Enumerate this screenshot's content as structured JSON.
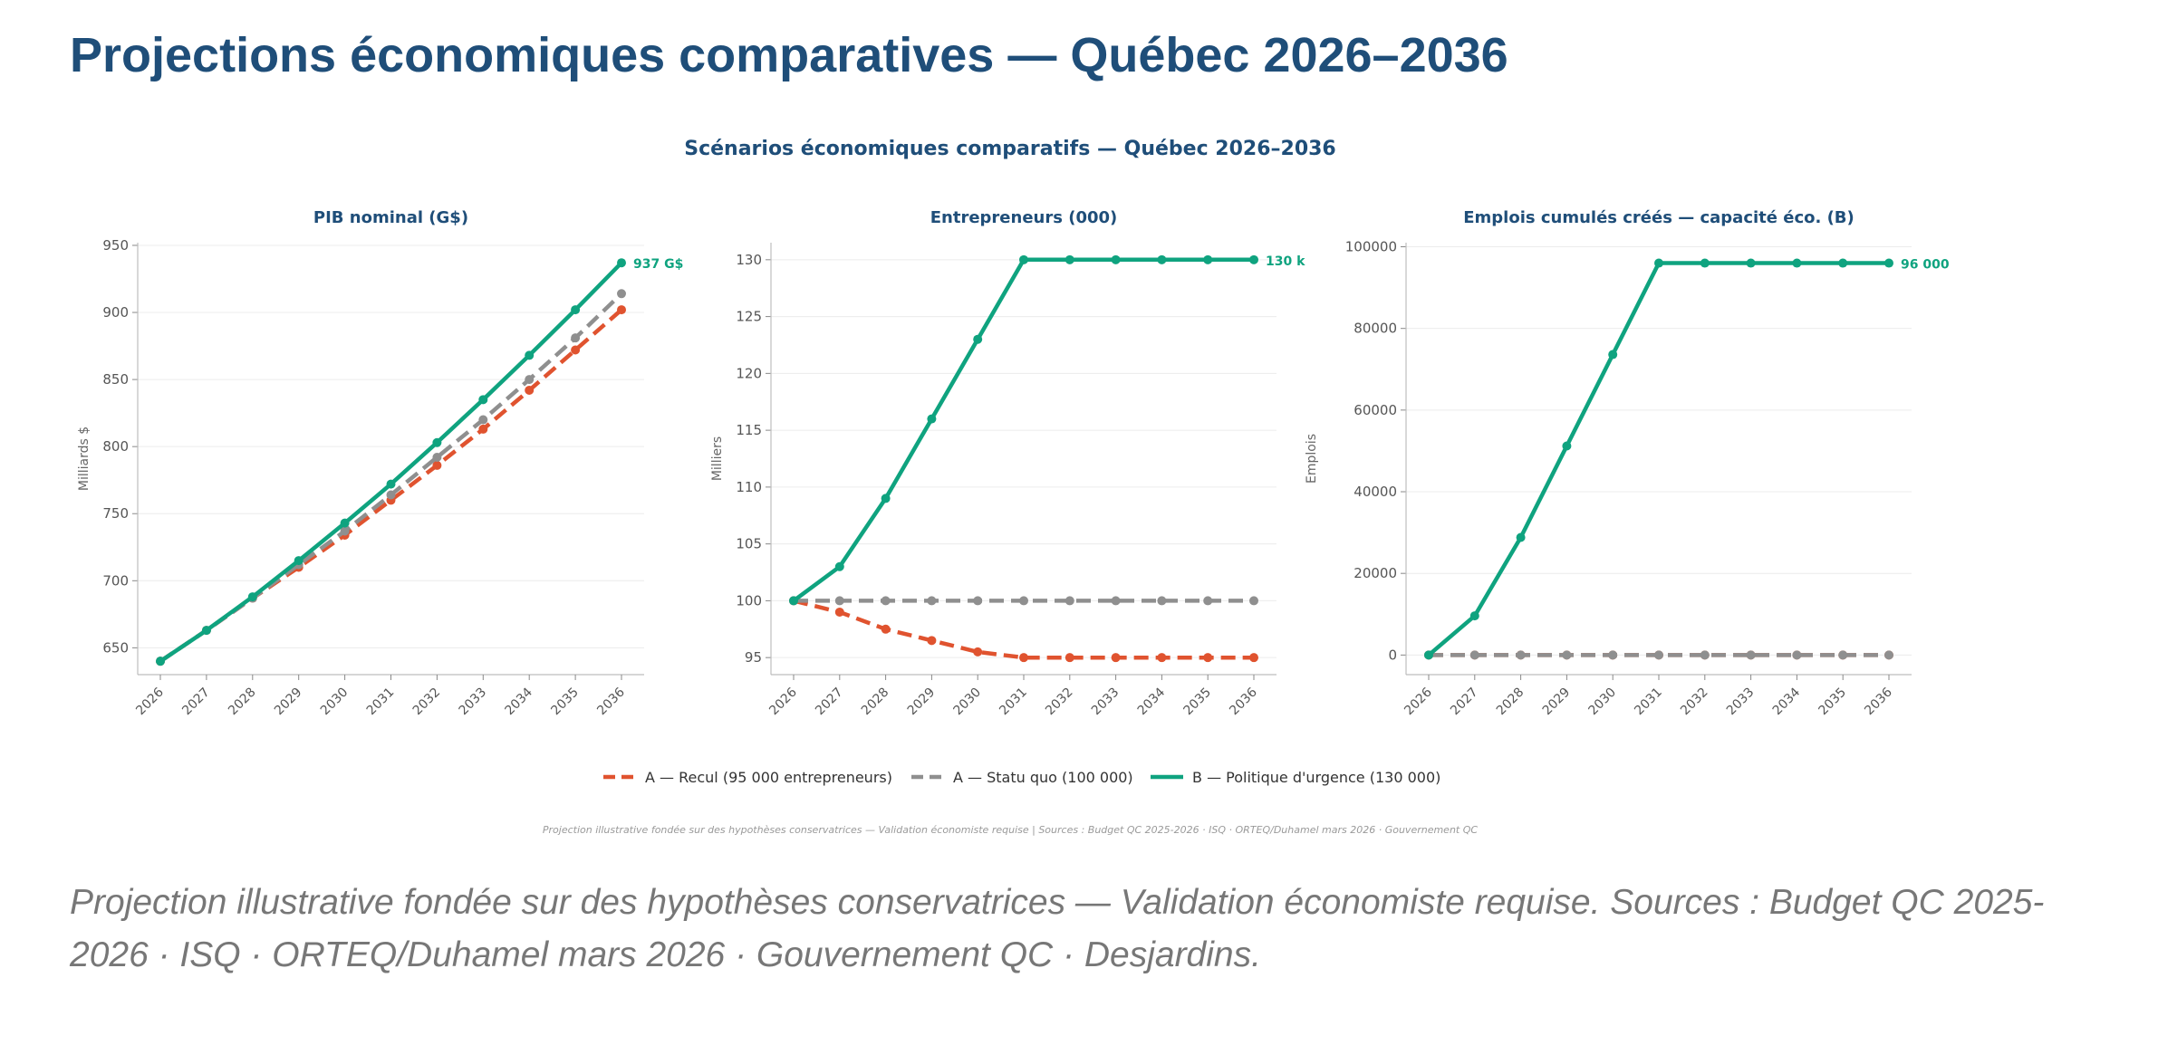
{
  "page": {
    "title": "Projections économiques comparatives — Québec 2026–2036",
    "caption": "Projection illustrative fondée sur des hypothèses conservatrices — Validation économiste requise. Sources : Budget QC 2025-2026 · ISQ · ORTEQ/Duhamel mars 2026 · Gouvernement QC · Desjardins."
  },
  "figure": {
    "suptitle": "Scénarios économiques comparatifs — Québec 2026–2036",
    "footnote": "Projection illustrative fondée sur des hypothèses conservatrices — Validation économiste requise  |  Sources : Budget QC 2025-2026 · ISQ · ORTEQ/Duhamel mars 2026 · Gouvernement QC",
    "legend_placement": "bottom-center",
    "legend": [
      {
        "label": "A — Recul (95 000 entrepreneurs)",
        "color": "#e0532f",
        "style": "dashed"
      },
      {
        "label": "A — Statu quo (100 000)",
        "color": "#8f8f8f",
        "style": "dashed"
      },
      {
        "label": "B — Politique d'urgence (130 000)",
        "color": "#0fa37f",
        "style": "solid"
      }
    ]
  },
  "chart_data": [
    {
      "type": "line",
      "title": "PIB nominal (G$)",
      "xlabel": "",
      "ylabel": "Milliards $",
      "x": [
        2026,
        2027,
        2028,
        2029,
        2030,
        2031,
        2032,
        2033,
        2034,
        2035,
        2036
      ],
      "ylim": [
        630,
        952
      ],
      "yticks": [
        650,
        700,
        750,
        800,
        850,
        900,
        950
      ],
      "grid": "horizontal",
      "end_label": "937 G$",
      "series": [
        {
          "name": "A — Recul (95 000 entrepreneurs)",
          "color": "#e0532f",
          "style": "dashed",
          "values": [
            640,
            663,
            687,
            710,
            734,
            760,
            786,
            813,
            842,
            872,
            902
          ]
        },
        {
          "name": "A — Statu quo (100 000)",
          "color": "#8f8f8f",
          "style": "dashed",
          "values": [
            640,
            663,
            687,
            712,
            737,
            764,
            792,
            820,
            850,
            881,
            914
          ]
        },
        {
          "name": "B — Politique d'urgence (130 000)",
          "color": "#0fa37f",
          "style": "solid",
          "values": [
            640,
            663,
            688,
            715,
            743,
            772,
            803,
            835,
            868,
            902,
            937
          ]
        }
      ]
    },
    {
      "type": "line",
      "title": "Entrepreneurs (000)",
      "xlabel": "",
      "ylabel": "Milliers",
      "x": [
        2026,
        2027,
        2028,
        2029,
        2030,
        2031,
        2032,
        2033,
        2034,
        2035,
        2036
      ],
      "ylim": [
        93.5,
        131.5
      ],
      "yticks": [
        95,
        100,
        105,
        110,
        115,
        120,
        125,
        130
      ],
      "grid": "horizontal",
      "end_label": "130 k",
      "series": [
        {
          "name": "A — Recul (95 000 entrepreneurs)",
          "color": "#e0532f",
          "style": "dashed",
          "values": [
            100,
            99,
            97.5,
            96.5,
            95.5,
            95,
            95,
            95,
            95,
            95,
            95
          ]
        },
        {
          "name": "A — Statu quo (100 000)",
          "color": "#8f8f8f",
          "style": "dashed",
          "values": [
            100,
            100,
            100,
            100,
            100,
            100,
            100,
            100,
            100,
            100,
            100
          ]
        },
        {
          "name": "B — Politique d'urgence (130 000)",
          "color": "#0fa37f",
          "style": "solid",
          "values": [
            100,
            103,
            109,
            116,
            123,
            130,
            130,
            130,
            130,
            130,
            130
          ]
        }
      ]
    },
    {
      "type": "line",
      "title": "Emplois cumulés créés — capacité éco. (B)",
      "xlabel": "",
      "ylabel": "Emplois",
      "x": [
        2026,
        2027,
        2028,
        2029,
        2030,
        2031,
        2032,
        2033,
        2034,
        2035,
        2036
      ],
      "ylim": [
        -4800,
        101000
      ],
      "yticks": [
        0,
        20000,
        40000,
        60000,
        80000,
        100000
      ],
      "grid": "horizontal",
      "end_label": "96 000",
      "series": [
        {
          "name": "A — Recul (95 000 entrepreneurs)",
          "color": "#e0532f",
          "style": "dashed",
          "values": [
            0,
            0,
            0,
            0,
            0,
            0,
            0,
            0,
            0,
            0,
            0
          ]
        },
        {
          "name": "A — Statu quo (100 000)",
          "color": "#8f8f8f",
          "style": "dashed",
          "values": [
            0,
            0,
            0,
            0,
            0,
            0,
            0,
            0,
            0,
            0,
            0
          ]
        },
        {
          "name": "B — Politique d'urgence (130 000)",
          "color": "#0fa37f",
          "style": "solid",
          "values": [
            0,
            9600,
            28800,
            51200,
            73600,
            96000,
            96000,
            96000,
            96000,
            96000,
            96000
          ]
        }
      ]
    }
  ]
}
